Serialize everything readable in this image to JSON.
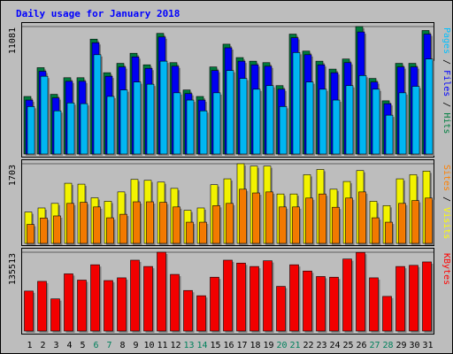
{
  "chart_data": {
    "type": "bar",
    "title": "Daily usage for January 2018",
    "categories": [
      "1",
      "2",
      "3",
      "4",
      "5",
      "6",
      "7",
      "8",
      "9",
      "10",
      "11",
      "12",
      "13",
      "14",
      "15",
      "16",
      "17",
      "18",
      "19",
      "20",
      "21",
      "22",
      "23",
      "24",
      "25",
      "26",
      "27",
      "28",
      "29",
      "30",
      "31"
    ],
    "weekend_days": [
      "6",
      "7",
      "13",
      "14",
      "20",
      "21",
      "27",
      "28"
    ],
    "colors": {
      "title": "#0000ff",
      "background": "#bdbdbd",
      "hits": "#008040",
      "files": "#0000ff",
      "pages": "#00c0ff",
      "visits": "#ffff00",
      "sites": "#ff8000",
      "kbytes": "#ff0000",
      "weekday_label": "#000000",
      "weekend_label": "#00805c"
    },
    "panels": [
      {
        "id": "hits-files-pages",
        "ymax_label": "11081",
        "ymax": 11081,
        "right_label": [
          {
            "text": "Pages",
            "color": "#00c0ff"
          },
          {
            "text": " / ",
            "color": "#000000"
          },
          {
            "text": "Files",
            "color": "#0000ff"
          },
          {
            "text": " / ",
            "color": "#000000"
          },
          {
            "text": "Hits",
            "color": "#008040"
          }
        ],
        "series": [
          {
            "name": "Hits",
            "color": "#008040",
            "values": [
              5002,
              7506,
              5189,
              6633,
              6633,
              9987,
              7068,
              7882,
              8758,
              7756,
              10487,
              7944,
              5565,
              5002,
              7569,
              9549,
              8383,
              8070,
              7944,
              5945,
              10424,
              8945,
              8070,
              7381,
              8257,
              11081,
              6570,
              4626,
              7882,
              7882,
              10737
            ]
          },
          {
            "name": "Files",
            "color": "#0000ff",
            "values": [
              4689,
              7194,
              4877,
              6320,
              6320,
              9674,
              6758,
              7569,
              8445,
              7444,
              10174,
              7632,
              5252,
              4689,
              7256,
              9236,
              8070,
              7756,
              7631,
              5632,
              10111,
              8633,
              7756,
              7068,
              7944,
              10612,
              6257,
              4376,
              7569,
              7569,
              10424
            ]
          },
          {
            "name": "Pages",
            "color": "#00c0ff",
            "values": [
              4126,
              6757,
              3751,
              4438,
              4376,
              8632,
              5007,
              5570,
              6257,
              6067,
              8070,
              5319,
              4689,
              3751,
              5319,
              7256,
              6570,
              5632,
              5945,
              4126,
              8820,
              6257,
              5632,
              4689,
              5945,
              6820,
              5632,
              3375,
              5319,
              5880,
              8257
            ]
          }
        ]
      },
      {
        "id": "visits-sites",
        "ymax_label": "1703",
        "ymax": 1703,
        "right_label": [
          {
            "text": "Sites",
            "color": "#ff8000"
          },
          {
            "text": " / ",
            "color": "#000000"
          },
          {
            "text": "Visits",
            "color": "#ffff00"
          }
        ],
        "series": [
          {
            "name": "Visits",
            "color": "#ffff00",
            "values": [
              669,
              757,
              855,
              1285,
              1266,
              974,
              899,
              1100,
              1367,
              1348,
              1310,
              1176,
              707,
              757,
              1254,
              1380,
              1703,
              1652,
              1652,
              1056,
              1056,
              1468,
              1580,
              1158,
              1323,
              1556,
              899,
              807,
              1380,
              1468,
              1544
            ]
          },
          {
            "name": "Sites",
            "color": "#ff8000",
            "values": [
              405,
              542,
              587,
              855,
              878,
              779,
              547,
              622,
              889,
              889,
              878,
              779,
              453,
              453,
              807,
              855,
              1158,
              1078,
              1100,
              779,
              779,
              969,
              1056,
              772,
              969,
              1100,
              547,
              453,
              855,
              915,
              969
            ]
          }
        ]
      },
      {
        "id": "kbytes",
        "ymax_label": "135513",
        "ymax": 135513,
        "right_label": [
          {
            "text": "KBytes",
            "color": "#ff0000"
          }
        ],
        "series": [
          {
            "name": "KBytes",
            "color": "#ff0000",
            "values": [
              68720,
              85380,
              55230,
              98340,
              87540,
              113950,
              86780,
              91480,
              121830,
              110990,
              135513,
              97360,
              69690,
              60670,
              92560,
              121830,
              116840,
              110990,
              120870,
              76760,
              113950,
              103170,
              93720,
              92560,
              123790,
              135150,
              91480,
              59520,
              110990,
              112950,
              118810
            ]
          }
        ]
      }
    ]
  }
}
